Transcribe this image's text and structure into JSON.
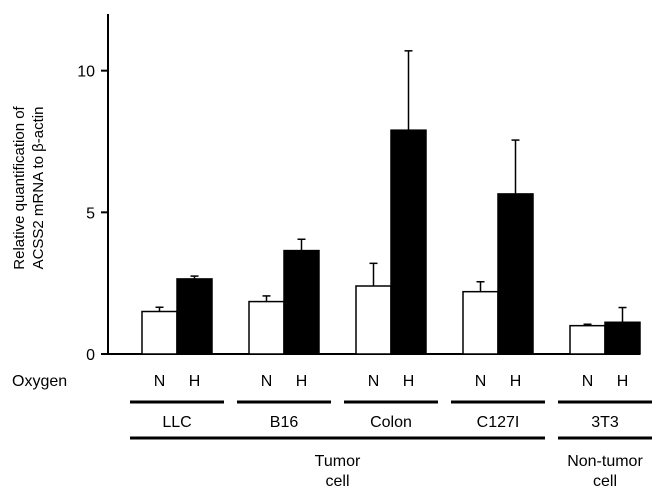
{
  "chart_data": {
    "type": "bar",
    "title": "",
    "ylabel_lines": [
      "Relative quantification of",
      "ACSS2 mRNA to β-actin"
    ],
    "ylim": [
      0,
      12
    ],
    "yticks": [
      0,
      5,
      10
    ],
    "oxygen_label": "Oxygen",
    "groups": [
      {
        "name": "LLC",
        "conditions": [
          "N",
          "H"
        ],
        "values": [
          1.5,
          2.65
        ],
        "errors": [
          0.15,
          0.1
        ]
      },
      {
        "name": "B16",
        "conditions": [
          "N",
          "H"
        ],
        "values": [
          1.85,
          3.65
        ],
        "errors": [
          0.2,
          0.4
        ]
      },
      {
        "name": "Colon",
        "conditions": [
          "N",
          "H"
        ],
        "values": [
          2.4,
          7.9
        ],
        "errors": [
          0.8,
          2.8
        ]
      },
      {
        "name": "C127I",
        "conditions": [
          "N",
          "H"
        ],
        "values": [
          2.2,
          5.65
        ],
        "errors": [
          0.35,
          1.9
        ]
      },
      {
        "name": "3T3",
        "conditions": [
          "N",
          "H"
        ],
        "values": [
          1.0,
          1.12
        ],
        "errors": [
          0.05,
          0.52
        ]
      }
    ],
    "series_colors": {
      "N": "#ffffff",
      "H": "#000000"
    },
    "categories": [
      {
        "lines": [
          "Tumor",
          "cell"
        ],
        "groups": [
          0,
          1,
          2,
          3
        ]
      },
      {
        "lines": [
          "Non-tumor",
          "cell"
        ],
        "groups": [
          4
        ]
      }
    ]
  }
}
